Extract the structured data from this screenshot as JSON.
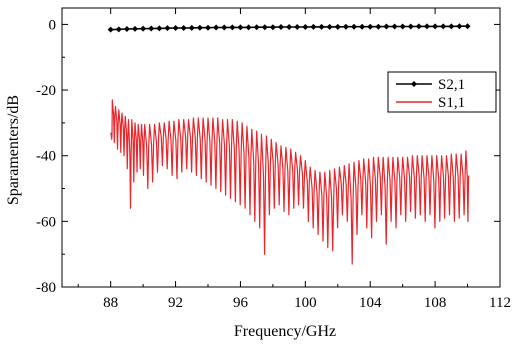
{
  "chart_data": {
    "type": "line",
    "title": "",
    "xlabel": "Frequency/GHz",
    "ylabel": "Sparamenters/dB",
    "xlim": [
      85,
      112
    ],
    "ylim": [
      -80,
      5
    ],
    "x_ticks": [
      88,
      92,
      96,
      100,
      104,
      108,
      112
    ],
    "y_ticks": [
      0,
      -20,
      -40,
      -60,
      -80
    ],
    "x_tick_labels": [
      "88",
      "92",
      "96",
      "100",
      "104",
      "108",
      "112"
    ],
    "y_tick_labels": [
      "0",
      "-20",
      "-40",
      "-60",
      "-80"
    ],
    "grid": false,
    "legend_position": "top-right",
    "series": [
      {
        "name": "S2,1",
        "color": "#000000",
        "marker": "diamond",
        "x": [
          88,
          88.5,
          89,
          89.5,
          90,
          90.5,
          91,
          91.5,
          92,
          92.5,
          93,
          93.5,
          94,
          94.5,
          95,
          95.5,
          96,
          96.5,
          97,
          97.5,
          98,
          98.5,
          99,
          99.5,
          100,
          100.5,
          101,
          101.5,
          102,
          102.5,
          103,
          103.5,
          104,
          104.5,
          105,
          105.5,
          106,
          106.5,
          107,
          107.5,
          108,
          108.5,
          109,
          109.5,
          110
        ],
        "y": [
          -1.6,
          -1.5,
          -1.4,
          -1.35,
          -1.3,
          -1.25,
          -1.2,
          -1.15,
          -1.1,
          -1.1,
          -1.05,
          -1.0,
          -1.0,
          -0.95,
          -0.95,
          -0.9,
          -0.9,
          -0.9,
          -0.85,
          -0.85,
          -0.85,
          -0.8,
          -0.8,
          -0.8,
          -0.8,
          -0.75,
          -0.75,
          -0.75,
          -0.75,
          -0.7,
          -0.7,
          -0.7,
          -0.7,
          -0.7,
          -0.65,
          -0.65,
          -0.65,
          -0.65,
          -0.6,
          -0.6,
          -0.6,
          -0.6,
          -0.6,
          -0.55,
          -0.55
        ]
      },
      {
        "name": "S1,1",
        "color": "#e8262b",
        "x": [
          88,
          88.1,
          88.3,
          88.5,
          88.7,
          88.9,
          89.1,
          89.3,
          89.5,
          89.7,
          89.9,
          90.1,
          90.4,
          90.7,
          91.0,
          91.3,
          91.6,
          91.9,
          92.2,
          92.5,
          92.8,
          93.1,
          93.4,
          93.7,
          94.0,
          94.3,
          94.6,
          94.9,
          95.2,
          95.5,
          95.8,
          96.1,
          96.4,
          96.7,
          97.0,
          97.3,
          97.6,
          97.9,
          98.2,
          98.5,
          98.8,
          99.1,
          99.4,
          99.7,
          100.0,
          100.3,
          100.6,
          100.9,
          101.2,
          101.5,
          101.8,
          102.1,
          102.4,
          102.7,
          103.0,
          103.3,
          103.6,
          103.9,
          104.2,
          104.5,
          104.8,
          105.1,
          105.4,
          105.7,
          106.0,
          106.3,
          106.6,
          106.9,
          107.2,
          107.5,
          107.8,
          108.1,
          108.4,
          108.7,
          109.0,
          109.3,
          109.6,
          109.9
        ],
        "peaks": [
          -33,
          -23,
          -25,
          -26,
          -27,
          -28,
          -29,
          -29,
          -30,
          -30.5,
          -30.5,
          -30.5,
          -30.5,
          -30.5,
          -30,
          -30,
          -29.5,
          -29.5,
          -29,
          -29,
          -29,
          -28.5,
          -28.5,
          -28.5,
          -28.5,
          -28.5,
          -28.5,
          -29,
          -29,
          -29,
          -29.5,
          -30,
          -31,
          -32,
          -32.5,
          -33.5,
          -34,
          -35,
          -36,
          -37,
          -37.5,
          -38,
          -39,
          -40,
          -41.5,
          -43.5,
          -44.5,
          -45,
          -45,
          -44.5,
          -44,
          -43.5,
          -43,
          -42.5,
          -42,
          -41.5,
          -41,
          -41,
          -40.5,
          -40.5,
          -40.5,
          -40.5,
          -40.5,
          -40.5,
          -40.5,
          -40.5,
          -40,
          -40,
          -40,
          -40,
          -40,
          -40,
          -40,
          -40,
          -39.5,
          -39.5,
          -39.5,
          -38.5
        ],
        "nulls": [
          -35,
          -36,
          -38,
          -39,
          -40,
          -44,
          -56,
          -48,
          -45,
          -44,
          -46,
          -50,
          -48,
          -45,
          -43,
          -44,
          -46,
          -47,
          -45,
          -44,
          -45,
          -46,
          -47,
          -48,
          -49,
          -50,
          -51,
          -52,
          -53,
          -54,
          -55,
          -56,
          -58,
          -60,
          -62,
          -70,
          -58,
          -56,
          -55,
          -57,
          -58,
          -56,
          -55,
          -56,
          -60,
          -62,
          -64,
          -66,
          -68,
          -69,
          -62,
          -58,
          -60,
          -73,
          -64,
          -58,
          -62,
          -65,
          -60,
          -58,
          -67,
          -60,
          -62,
          -58,
          -60,
          -57,
          -59,
          -58,
          -60,
          -58,
          -62,
          -60,
          -59,
          -58,
          -60,
          -59,
          -58,
          -60
        ]
      }
    ]
  }
}
